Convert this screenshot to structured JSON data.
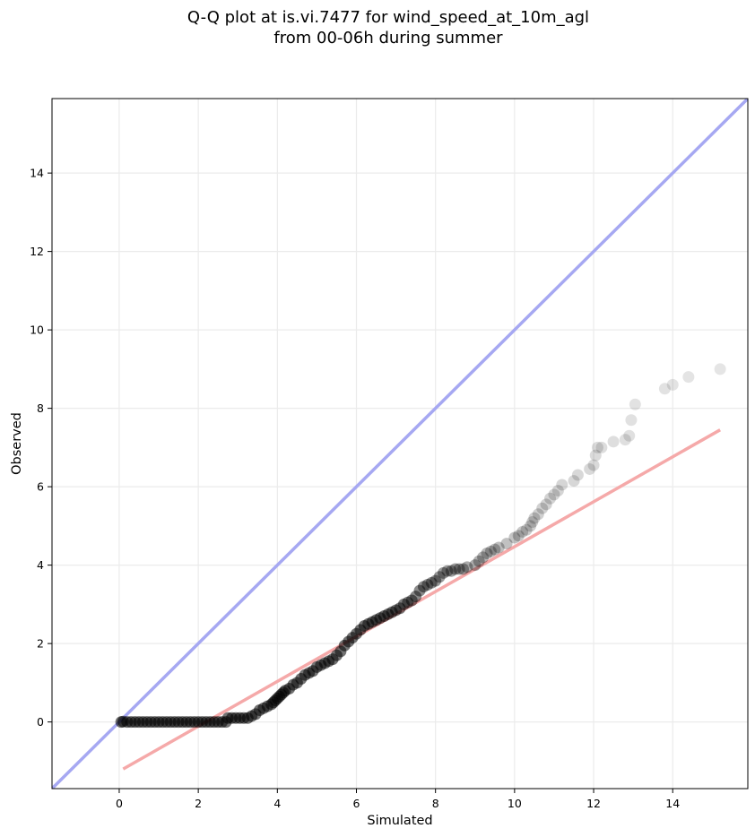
{
  "chart_data": {
    "type": "scatter",
    "title_lines": [
      "Q-Q plot at is.vi.7477 for wind_speed_at_10m_agl",
      "from 00-06h during summer"
    ],
    "xlabel": "Simulated",
    "ylabel": "Observed",
    "xlim": [
      -1.7,
      15.9
    ],
    "ylim": [
      -1.7,
      15.9
    ],
    "xticks": [
      0,
      2,
      4,
      6,
      8,
      10,
      12,
      14
    ],
    "yticks": [
      0,
      2,
      4,
      6,
      8,
      10,
      12,
      14
    ],
    "grid": true,
    "colors": {
      "points": "#000000",
      "identity_line": "#a6a8f2",
      "fit_line": "#f5a9a9",
      "grid": "#ebebeb"
    },
    "points": [
      [
        0.05,
        0.0
      ],
      [
        0.1,
        0.01
      ],
      [
        0.2,
        0.0
      ],
      [
        0.3,
        0.0
      ],
      [
        0.4,
        0.0
      ],
      [
        0.5,
        0.0
      ],
      [
        0.6,
        0.0
      ],
      [
        0.7,
        0.0
      ],
      [
        0.8,
        0.0
      ],
      [
        0.9,
        0.0
      ],
      [
        1.0,
        0.0
      ],
      [
        1.1,
        0.0
      ],
      [
        1.2,
        0.0
      ],
      [
        1.3,
        0.0
      ],
      [
        1.4,
        0.0
      ],
      [
        1.5,
        0.0
      ],
      [
        1.6,
        0.0
      ],
      [
        1.7,
        0.0
      ],
      [
        1.8,
        0.0
      ],
      [
        1.9,
        0.0
      ],
      [
        2.0,
        0.0
      ],
      [
        2.1,
        0.0
      ],
      [
        2.2,
        0.0
      ],
      [
        2.3,
        0.0
      ],
      [
        2.4,
        0.0
      ],
      [
        2.5,
        0.0
      ],
      [
        2.6,
        0.0
      ],
      [
        2.7,
        0.0
      ],
      [
        2.75,
        0.1
      ],
      [
        2.85,
        0.1
      ],
      [
        2.95,
        0.1
      ],
      [
        3.05,
        0.1
      ],
      [
        3.15,
        0.1
      ],
      [
        3.25,
        0.1
      ],
      [
        3.35,
        0.15
      ],
      [
        3.45,
        0.2
      ],
      [
        3.55,
        0.3
      ],
      [
        3.65,
        0.35
      ],
      [
        3.75,
        0.4
      ],
      [
        3.85,
        0.45
      ],
      [
        3.9,
        0.5
      ],
      [
        3.95,
        0.55
      ],
      [
        4.0,
        0.6
      ],
      [
        4.05,
        0.65
      ],
      [
        4.1,
        0.7
      ],
      [
        4.15,
        0.75
      ],
      [
        4.2,
        0.8
      ],
      [
        4.3,
        0.85
      ],
      [
        4.4,
        0.95
      ],
      [
        4.5,
        1.0
      ],
      [
        4.6,
        1.1
      ],
      [
        4.7,
        1.2
      ],
      [
        4.8,
        1.25
      ],
      [
        4.9,
        1.3
      ],
      [
        5.0,
        1.4
      ],
      [
        5.1,
        1.45
      ],
      [
        5.2,
        1.5
      ],
      [
        5.3,
        1.55
      ],
      [
        5.4,
        1.6
      ],
      [
        5.5,
        1.7
      ],
      [
        5.6,
        1.8
      ],
      [
        5.7,
        1.95
      ],
      [
        5.8,
        2.05
      ],
      [
        5.9,
        2.15
      ],
      [
        6.0,
        2.25
      ],
      [
        6.1,
        2.35
      ],
      [
        6.2,
        2.45
      ],
      [
        6.3,
        2.5
      ],
      [
        6.4,
        2.55
      ],
      [
        6.5,
        2.6
      ],
      [
        6.6,
        2.65
      ],
      [
        6.7,
        2.7
      ],
      [
        6.8,
        2.75
      ],
      [
        6.9,
        2.8
      ],
      [
        7.0,
        2.85
      ],
      [
        7.1,
        2.9
      ],
      [
        7.2,
        3.0
      ],
      [
        7.3,
        3.05
      ],
      [
        7.4,
        3.1
      ],
      [
        7.5,
        3.2
      ],
      [
        7.6,
        3.35
      ],
      [
        7.7,
        3.45
      ],
      [
        7.8,
        3.5
      ],
      [
        7.9,
        3.55
      ],
      [
        8.0,
        3.6
      ],
      [
        8.1,
        3.7
      ],
      [
        8.2,
        3.8
      ],
      [
        8.3,
        3.85
      ],
      [
        8.4,
        3.85
      ],
      [
        8.5,
        3.9
      ],
      [
        8.6,
        3.9
      ],
      [
        8.7,
        3.9
      ],
      [
        8.8,
        3.95
      ],
      [
        9.0,
        4.0
      ],
      [
        9.1,
        4.1
      ],
      [
        9.2,
        4.2
      ],
      [
        9.3,
        4.3
      ],
      [
        9.4,
        4.35
      ],
      [
        9.5,
        4.4
      ],
      [
        9.6,
        4.45
      ],
      [
        9.8,
        4.55
      ],
      [
        10.0,
        4.7
      ],
      [
        10.1,
        4.75
      ],
      [
        10.2,
        4.85
      ],
      [
        10.3,
        4.9
      ],
      [
        10.4,
        5.0
      ],
      [
        10.45,
        5.1
      ],
      [
        10.5,
        5.2
      ],
      [
        10.6,
        5.3
      ],
      [
        10.7,
        5.45
      ],
      [
        10.8,
        5.55
      ],
      [
        10.9,
        5.7
      ],
      [
        11.0,
        5.8
      ],
      [
        11.1,
        5.9
      ],
      [
        11.2,
        6.05
      ],
      [
        11.5,
        6.15
      ],
      [
        11.6,
        6.3
      ],
      [
        11.9,
        6.45
      ],
      [
        12.0,
        6.55
      ],
      [
        12.05,
        6.8
      ],
      [
        12.1,
        7.0
      ],
      [
        12.2,
        7.0
      ],
      [
        12.5,
        7.15
      ],
      [
        12.8,
        7.2
      ],
      [
        12.9,
        7.3
      ],
      [
        12.95,
        7.7
      ],
      [
        13.05,
        8.1
      ],
      [
        13.8,
        8.5
      ],
      [
        14.0,
        8.6
      ],
      [
        14.4,
        8.8
      ],
      [
        15.2,
        9.0
      ]
    ],
    "fit_line": {
      "x": [
        0.1,
        15.2
      ],
      "y": [
        -1.2,
        7.45
      ]
    },
    "identity_line": {
      "x": [
        -1.7,
        15.9
      ],
      "y": [
        -1.7,
        15.9
      ]
    }
  }
}
